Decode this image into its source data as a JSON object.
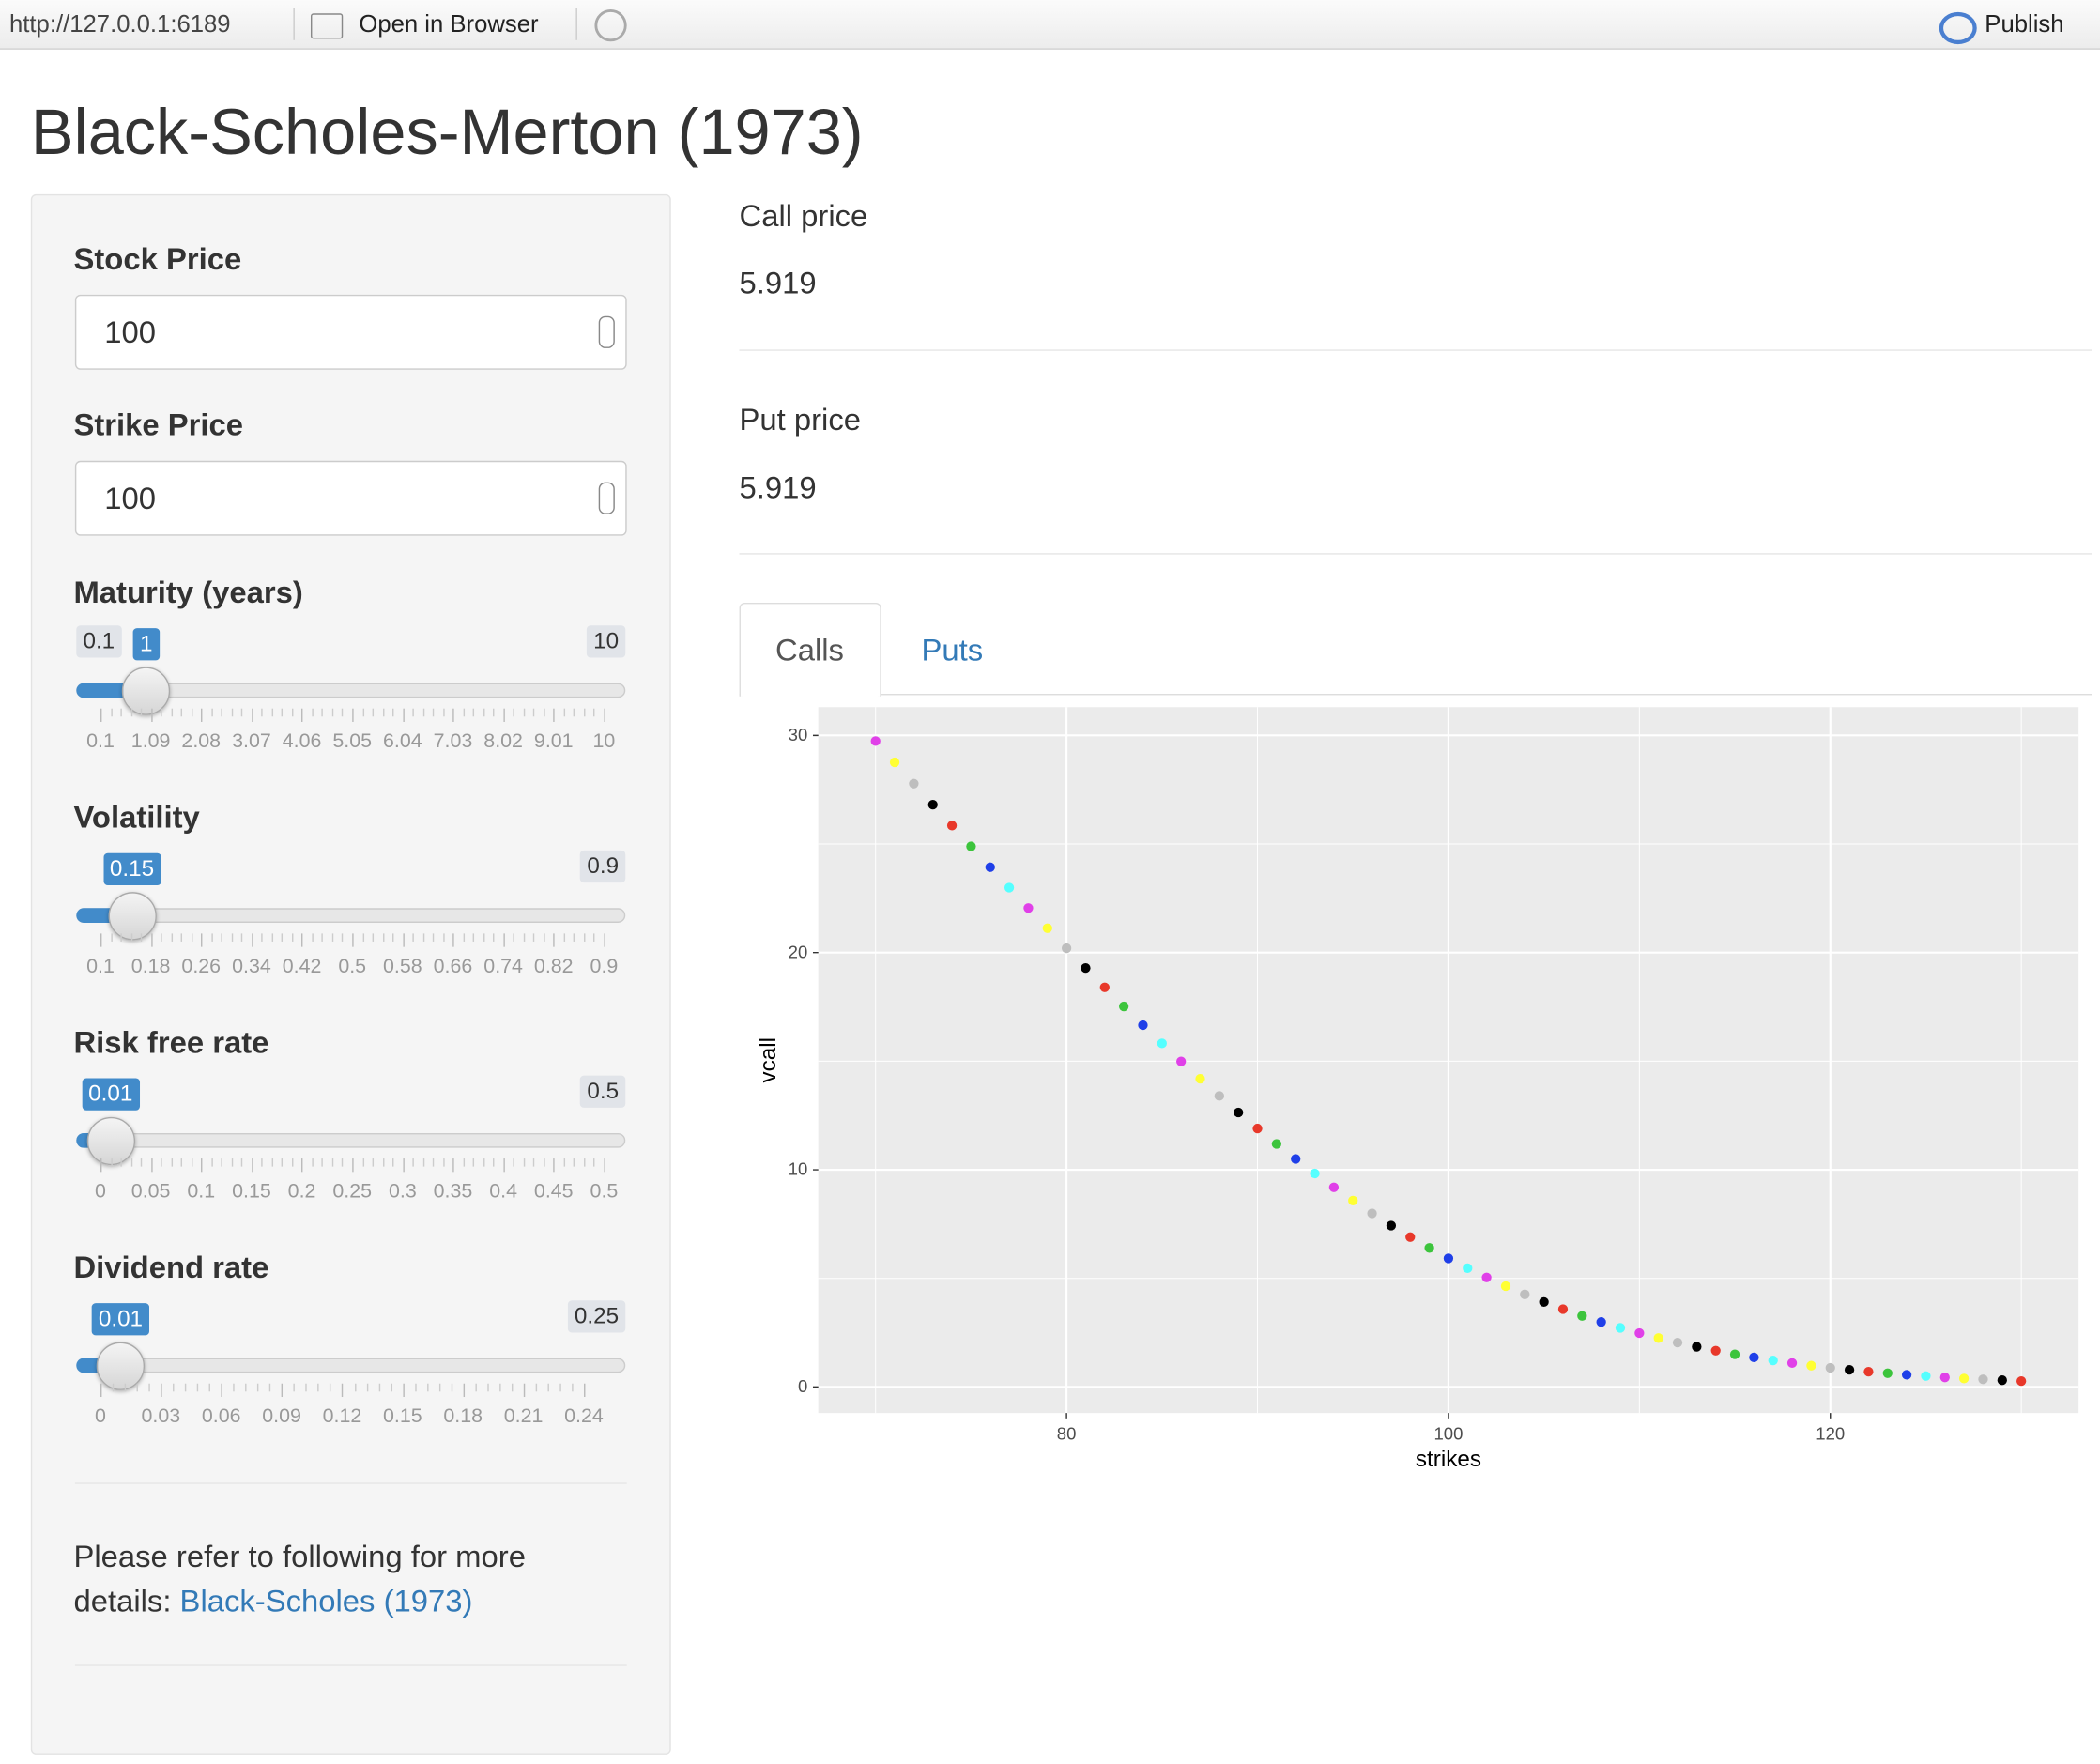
{
  "browser": {
    "url": "http://127.0.0.1:6189",
    "open": "Open in Browser",
    "publish": "Publish"
  },
  "title": "Black-Scholes-Merton (1973)",
  "inputs": [
    {
      "label": "Stock Price",
      "value": 100
    },
    {
      "label": "Strike Price",
      "value": 100
    }
  ],
  "sliders": [
    {
      "label": "Maturity (years)",
      "min": 0.1,
      "max": 10,
      "value": 1,
      "grid": [
        0.1,
        1.09,
        2.08,
        3.07,
        4.06,
        5.05,
        6.04,
        7.03,
        8.02,
        9.01,
        10
      ]
    },
    {
      "label": "Volatility",
      "max": 0.9,
      "value": 0.15,
      "grid": [
        0.1,
        0.18,
        0.26,
        0.34,
        0.42,
        0.5,
        0.58,
        0.66,
        0.74,
        0.82,
        0.9
      ]
    },
    {
      "label": "Risk free rate",
      "max": 0.5,
      "value": 0.01,
      "grid": [
        0,
        0.05,
        0.1,
        0.15,
        0.2,
        0.25,
        0.3,
        0.35,
        0.4,
        0.45,
        0.5
      ]
    },
    {
      "label": "Dividend rate",
      "max": 0.25,
      "value": 0.01,
      "grid": [
        0,
        0.03,
        0.06,
        0.09,
        0.12,
        0.15,
        0.18,
        0.21,
        0.24
      ]
    }
  ],
  "note": {
    "text": "Please refer to following for more details:",
    "link": "Black-Scholes (1973)"
  },
  "outputs": [
    {
      "label": "Call price",
      "value": 5.919
    },
    {
      "label": "Put price",
      "value": 5.919
    }
  ],
  "tabs": [
    "Calls",
    "Puts"
  ],
  "chart_data": {
    "type": "scatter",
    "xlabel": "strikes",
    "ylabel": "vcall",
    "x": [
      70,
      71,
      72,
      73,
      74,
      75,
      76,
      77,
      78,
      79,
      80,
      81,
      82,
      83,
      84,
      85,
      86,
      87,
      88,
      89,
      90,
      91,
      92,
      93,
      94,
      95,
      96,
      97,
      98,
      99,
      100,
      101,
      102,
      103,
      104,
      105,
      106,
      107,
      108,
      109,
      110,
      111,
      112,
      113,
      114,
      115,
      116,
      117,
      118,
      119,
      120,
      121,
      122,
      123,
      124,
      125,
      126,
      127,
      128,
      129,
      130
    ],
    "values": [
      29.74,
      28.76,
      27.78,
      26.81,
      25.85,
      24.89,
      23.93,
      22.99,
      22.05,
      21.12,
      20.2,
      19.29,
      18.4,
      17.52,
      16.66,
      15.82,
      14.99,
      14.19,
      13.4,
      12.64,
      11.9,
      11.19,
      10.5,
      9.83,
      9.19,
      8.58,
      7.99,
      7.43,
      6.9,
      6.4,
      5.919,
      5.47,
      5.04,
      4.64,
      4.26,
      3.91,
      3.58,
      3.27,
      2.99,
      2.72,
      2.48,
      2.25,
      2.04,
      1.85,
      1.67,
      1.5,
      1.36,
      1.22,
      1.1,
      0.98,
      0.88,
      0.79,
      0.7,
      0.63,
      0.56,
      0.5,
      0.44,
      0.39,
      0.35,
      0.31,
      0.27
    ],
    "colors": [
      "#e040e8",
      "#ffff33",
      "#bebebe",
      "#000000",
      "#e8382a",
      "#3cc43c",
      "#1f3fe8",
      "#55ffff"
    ],
    "xlim": [
      67,
      133
    ],
    "ylim": [
      -1.2,
      31.3
    ],
    "xticks": [
      80,
      100,
      120
    ],
    "yticks": [
      0,
      10,
      20,
      30
    ],
    "grid": true
  }
}
